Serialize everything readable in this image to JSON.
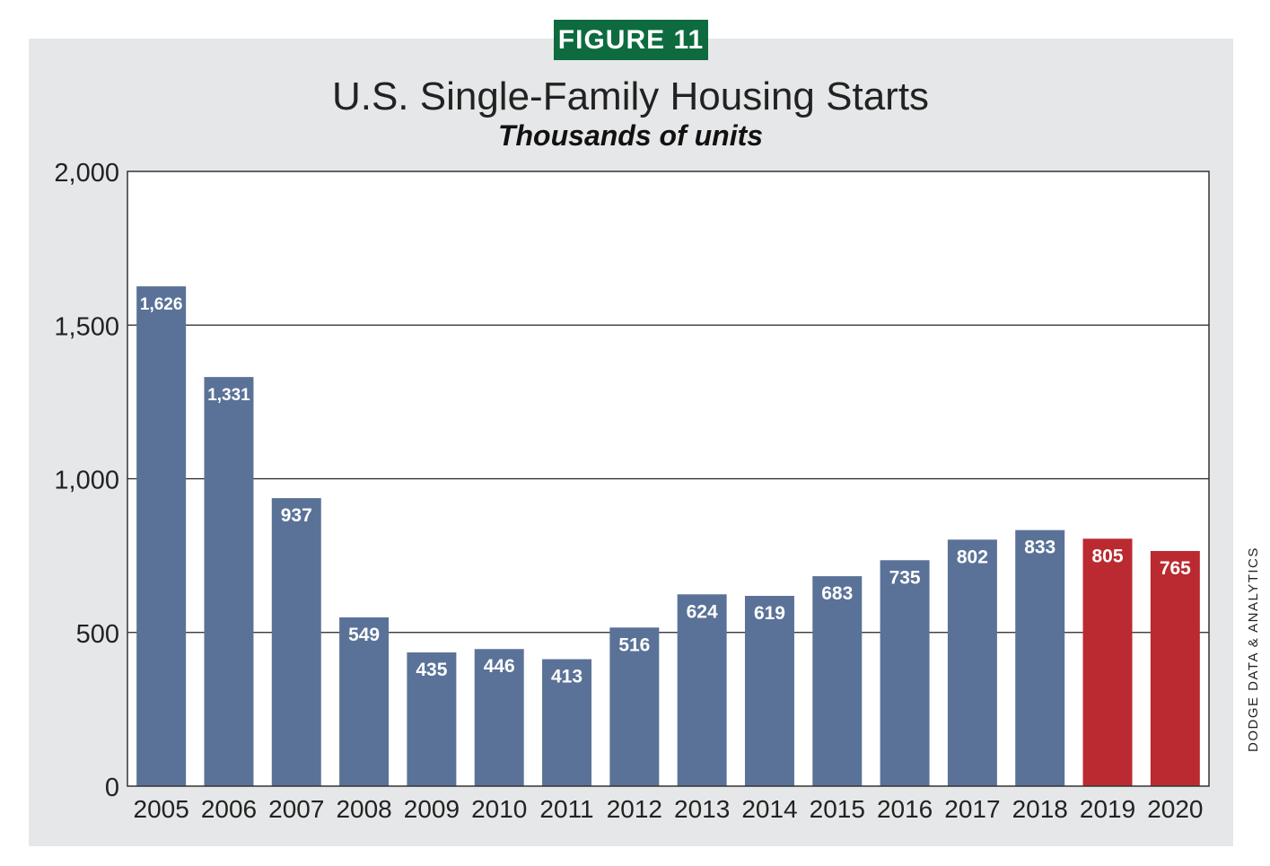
{
  "badge": "FIGURE 11",
  "credit": "DODGE DATA & ANALYTICS",
  "chart_data": {
    "type": "bar",
    "title": "U.S. Single-Family Housing Starts",
    "subtitle": "Thousands of units",
    "xlabel": "",
    "ylabel": "",
    "categories": [
      "2005",
      "2006",
      "2007",
      "2008",
      "2009",
      "2010",
      "2011",
      "2012",
      "2013",
      "2014",
      "2015",
      "2016",
      "2017",
      "2018",
      "2019",
      "2020"
    ],
    "values": [
      1626,
      1331,
      937,
      549,
      435,
      446,
      413,
      516,
      624,
      619,
      683,
      735,
      802,
      833,
      805,
      765
    ],
    "value_labels": [
      "1,626",
      "1,331",
      "937",
      "549",
      "435",
      "446",
      "413",
      "516",
      "624",
      "619",
      "683",
      "735",
      "802",
      "833",
      "805",
      "765"
    ],
    "ylim": [
      0,
      2000
    ],
    "yticks": [
      0,
      500,
      1000,
      1500,
      2000
    ],
    "ytick_labels": [
      "0",
      "500",
      "1,000",
      "1,500",
      "2,000"
    ],
    "grid": true,
    "colors": {
      "actual": "#5a7297",
      "forecast": "#bb2a30",
      "grid": "#222222",
      "plot_bg": "#ffffff",
      "panel_bg": "#e6e7e8",
      "badge_bg": "#0d6b3f"
    },
    "forecast_categories": [
      "2019",
      "2020"
    ]
  }
}
